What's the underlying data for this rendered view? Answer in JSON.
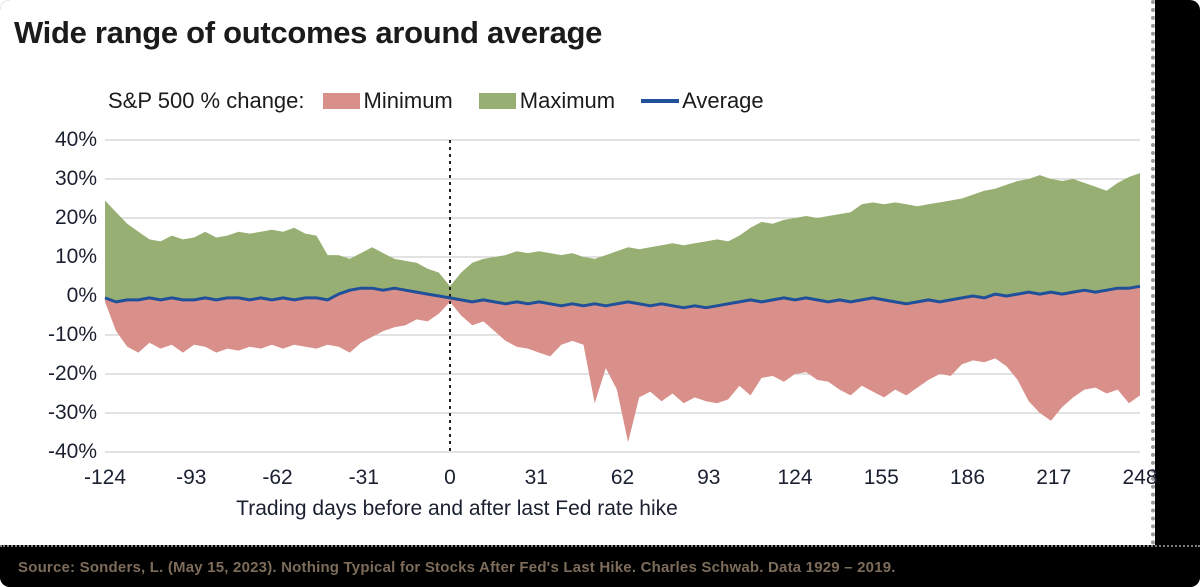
{
  "header": {
    "title": "Wide range of outcomes around average"
  },
  "legend": {
    "prefix": "S&P 500 % change:",
    "items": [
      {
        "label": "Minimum",
        "color": "#D98F8A",
        "kind": "area"
      },
      {
        "label": "Maximum",
        "color": "#97AF72",
        "kind": "area"
      },
      {
        "label": "Average",
        "color": "#20509A",
        "kind": "line"
      }
    ]
  },
  "chart_data": {
    "type": "area",
    "title": "Wide range of outcomes around average",
    "xlabel": "Trading days before and after last Fed rate hike",
    "ylabel": "S&P 500 % change",
    "xlim": [
      -124,
      248
    ],
    "ylim": [
      -40,
      40
    ],
    "x_ticks": [
      -124,
      -93,
      -62,
      -31,
      0,
      31,
      62,
      93,
      124,
      155,
      186,
      217,
      248
    ],
    "y_tick_values": [
      40,
      30,
      20,
      10,
      0,
      -10,
      -20,
      -30,
      -40
    ],
    "y_tick_labels": [
      "40%",
      "30%",
      "20%",
      "10%",
      "0%",
      "-10%",
      "-20%",
      "-30%",
      "-40%"
    ],
    "grid": "horizontal",
    "legend_position": "top",
    "day_zero_marker": true,
    "x": [
      -124,
      -120,
      -116,
      -112,
      -108,
      -104,
      -100,
      -96,
      -92,
      -88,
      -84,
      -80,
      -76,
      -72,
      -68,
      -64,
      -60,
      -56,
      -52,
      -48,
      -44,
      -40,
      -36,
      -32,
      -28,
      -24,
      -20,
      -16,
      -12,
      -8,
      -4,
      0,
      4,
      8,
      12,
      16,
      20,
      24,
      28,
      32,
      36,
      40,
      44,
      48,
      52,
      56,
      60,
      64,
      68,
      72,
      76,
      80,
      84,
      88,
      92,
      96,
      100,
      104,
      108,
      112,
      116,
      120,
      124,
      128,
      132,
      136,
      140,
      144,
      148,
      152,
      156,
      160,
      164,
      168,
      172,
      176,
      180,
      184,
      188,
      192,
      196,
      200,
      204,
      208,
      212,
      216,
      220,
      224,
      228,
      232,
      236,
      240,
      244,
      248
    ],
    "series": [
      {
        "name": "Maximum",
        "type": "area",
        "fill": "#97AF72",
        "values": [
          24.5,
          21.5,
          18.5,
          16.5,
          14.5,
          14.0,
          15.5,
          14.5,
          15.0,
          16.5,
          15.0,
          15.5,
          16.5,
          16.0,
          16.5,
          17.0,
          16.5,
          17.5,
          16.0,
          15.5,
          10.5,
          10.5,
          9.5,
          11.0,
          12.5,
          11.0,
          9.5,
          9.0,
          8.5,
          7.0,
          6.0,
          2.5,
          6.0,
          8.5,
          9.5,
          10.0,
          10.5,
          11.5,
          11.0,
          11.5,
          11.0,
          10.5,
          11.0,
          10.0,
          9.5,
          10.5,
          11.5,
          12.5,
          12.0,
          12.5,
          13.0,
          13.5,
          13.0,
          13.5,
          14.0,
          14.5,
          14.0,
          15.5,
          17.5,
          19.0,
          18.5,
          19.5,
          20.0,
          20.5,
          20.0,
          20.5,
          21.0,
          21.5,
          23.5,
          24.0,
          23.5,
          24.0,
          23.5,
          23.0,
          23.5,
          24.0,
          24.5,
          25.0,
          26.0,
          27.0,
          27.5,
          28.5,
          29.5,
          30.0,
          31.0,
          30.0,
          29.5,
          30.0,
          29.0,
          28.0,
          27.0,
          29.0,
          30.5,
          31.5
        ]
      },
      {
        "name": "Minimum",
        "type": "area",
        "fill": "#D98F8A",
        "values": [
          -1.5,
          -9.0,
          -13.0,
          -14.5,
          -12.0,
          -13.5,
          -12.5,
          -14.5,
          -12.5,
          -13.0,
          -14.5,
          -13.5,
          -14.0,
          -13.0,
          -13.5,
          -12.5,
          -13.5,
          -12.5,
          -13.0,
          -13.5,
          -12.5,
          -13.0,
          -14.5,
          -12.0,
          -10.5,
          -9.0,
          -8.0,
          -7.5,
          -6.0,
          -6.5,
          -4.5,
          -1.5,
          -5.0,
          -7.5,
          -6.5,
          -9.0,
          -11.5,
          -13.0,
          -13.5,
          -14.5,
          -15.5,
          -12.5,
          -11.5,
          -12.5,
          -27.5,
          -18.5,
          -24.0,
          -37.5,
          -26.0,
          -24.5,
          -27.0,
          -25.0,
          -27.5,
          -26.0,
          -27.0,
          -27.5,
          -26.5,
          -23.0,
          -25.5,
          -21.0,
          -20.5,
          -22.0,
          -20.0,
          -19.5,
          -21.5,
          -22.0,
          -24.0,
          -25.5,
          -23.0,
          -24.5,
          -26.0,
          -24.0,
          -25.5,
          -23.5,
          -21.5,
          -20.0,
          -20.5,
          -17.5,
          -16.5,
          -17.0,
          -16.0,
          -18.0,
          -21.5,
          -27.0,
          -30.0,
          -32.0,
          -28.5,
          -26.0,
          -24.0,
          -23.5,
          -25.0,
          -24.0,
          -27.5,
          -25.5
        ]
      },
      {
        "name": "Average",
        "type": "line",
        "color": "#20509A",
        "values": [
          -0.5,
          -1.5,
          -1.0,
          -1.0,
          -0.5,
          -1.0,
          -0.5,
          -1.0,
          -1.0,
          -0.5,
          -1.0,
          -0.5,
          -0.5,
          -1.0,
          -0.5,
          -1.0,
          -0.5,
          -1.0,
          -0.5,
          -0.5,
          -1.0,
          0.5,
          1.5,
          2.0,
          2.0,
          1.5,
          2.0,
          1.5,
          1.0,
          0.5,
          0.0,
          -0.5,
          -1.0,
          -1.5,
          -1.0,
          -1.5,
          -2.0,
          -1.5,
          -2.0,
          -1.5,
          -2.0,
          -2.5,
          -2.0,
          -2.5,
          -2.0,
          -2.5,
          -2.0,
          -1.5,
          -2.0,
          -2.5,
          -2.0,
          -2.5,
          -3.0,
          -2.5,
          -3.0,
          -2.5,
          -2.0,
          -1.5,
          -1.0,
          -1.5,
          -1.0,
          -0.5,
          -1.0,
          -0.5,
          -1.0,
          -1.5,
          -1.0,
          -1.5,
          -1.0,
          -0.5,
          -1.0,
          -1.5,
          -2.0,
          -1.5,
          -1.0,
          -1.5,
          -1.0,
          -0.5,
          0.0,
          -0.5,
          0.5,
          0.0,
          0.5,
          1.0,
          0.5,
          1.0,
          0.5,
          1.0,
          1.5,
          1.0,
          1.5,
          2.0,
          2.0,
          2.5
        ]
      }
    ]
  },
  "footer": {
    "source": "Source: Sonders, L. (May 15, 2023). Nothing Typical for Stocks After Fed's Last Hike. Charles Schwab. Data 1929 – 2019."
  },
  "colors": {
    "background": "#ffffff",
    "frame": "#000000",
    "grid": "#c4c4c4",
    "axis_text": "#1a2030",
    "title_text": "#1b1b1b",
    "source_text": "#7d6c5a",
    "min_fill": "#D98F8A",
    "max_fill": "#97AF72",
    "avg_line": "#20509A",
    "zero_marker": "#222222"
  }
}
